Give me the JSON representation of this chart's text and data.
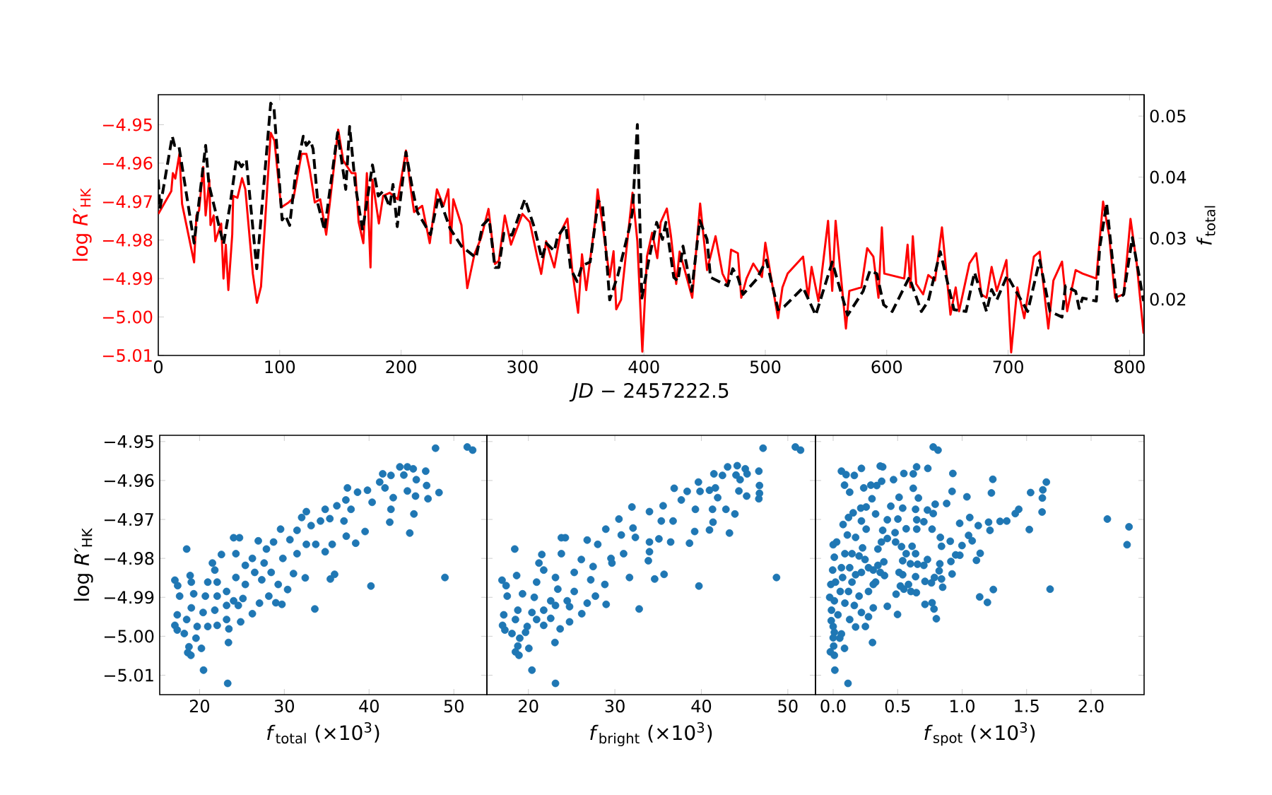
{
  "chart_data": [
    {
      "type": "line",
      "xlabel": "*JD* − 2457222.5",
      "ylabel": "log *R′*$_{HK}$",
      "y2label": "*f*$_{total}$",
      "xlim": [
        0,
        812
      ],
      "xticks": [
        0,
        100,
        200,
        300,
        400,
        500,
        600,
        700,
        800
      ],
      "ylim": [
        -5.01,
        -4.9422
      ],
      "yticks": [
        {
          "value": -5.01,
          "label": "−5.01"
        },
        {
          "value": -5.0,
          "label": "−5.00"
        },
        {
          "value": -4.99,
          "label": "−4.99"
        },
        {
          "value": -4.98,
          "label": "−4.98"
        },
        {
          "value": -4.97,
          "label": "−4.97"
        },
        {
          "value": -4.96,
          "label": "−4.96"
        },
        {
          "value": -4.95,
          "label": "−4.95"
        }
      ],
      "y2lim": [
        0.0108,
        0.0535
      ],
      "y2ticks": [
        0.02,
        0.03,
        0.04,
        0.05
      ],
      "series": [
        {
          "color": "#ff0000",
          "line_style": "solid",
          "x": [
            0,
            10.7,
            12,
            14,
            17.4,
            19.6,
            29.5,
            31.4,
            33.6,
            37,
            39,
            42,
            43,
            45.6,
            47,
            51.8,
            53.7,
            55.6,
            57.7,
            60.9,
            61.7,
            65.2,
            69,
            71.7,
            77.9,
            81.3,
            84.6,
            92.6,
            95.7,
            101.2,
            107.4,
            111.4,
            118,
            122,
            124.8,
            128.9,
            133.4,
            138.3,
            148.2,
            152.3,
            159.2,
            162.4,
            165,
            168.9,
            171.8,
            174.8,
            176.4,
            181.7,
            185.2,
            190.6,
            197.3,
            204,
            208,
            210.7,
            217.4,
            223.6,
            229.5,
            234.9,
            238.9,
            240.8,
            243,
            249.7,
            254.5,
            260.4,
            265.8,
            272,
            277.3,
            280.5,
            285.4,
            290.5,
            299.9,
            306,
            312.2,
            315.4,
            319.5,
            326.2,
            331.6,
            337,
            341,
            345.8,
            349,
            352.5,
            359.7,
            361.9,
            371.8,
            375,
            377.2,
            381.2,
            390.6,
            394.6,
            398.7,
            402.5,
            406.8,
            411,
            413.8,
            418.9,
            422.3,
            426.6,
            429.4,
            433.6,
            439.8,
            446.3,
            452,
            459,
            464.7,
            468.9,
            471.8,
            477.4,
            480.2,
            484.5,
            490.1,
            497.2,
            500,
            505.6,
            510.5,
            514.1,
            518.4,
            531.1,
            535.3,
            538.1,
            543.8,
            551.7,
            555.1,
            557.9,
            566.4,
            569.2,
            579.1,
            583.9,
            589,
            593.2,
            596,
            598,
            614.4,
            617.2,
            619.5,
            621.5,
            624.3,
            630,
            634.2,
            639.8,
            645.5,
            652.5,
            656.8,
            659.6,
            668.1,
            673.7,
            678,
            682.2,
            686.4,
            690.7,
            698.6,
            702.5,
            707.6,
            713.3,
            721.2,
            726,
            733.1,
            737.3,
            744.4,
            748.6,
            755.6,
            761.3,
            772.6,
            778.2,
            783.3,
            788.1,
            795.2,
            800.8,
            805.9,
            811.6
          ],
          "values": [
            -4.9732,
            -4.9673,
            -4.9626,
            -4.964,
            -4.9576,
            -4.9706,
            -4.9858,
            -4.9736,
            -4.9723,
            -4.961,
            -4.9736,
            -4.9643,
            -4.9761,
            -4.9736,
            -4.9803,
            -4.9757,
            -4.99,
            -4.9812,
            -4.993,
            -4.9786,
            -4.9685,
            -4.969,
            -4.9639,
            -4.9668,
            -4.9888,
            -4.9963,
            -4.9921,
            -4.9521,
            -4.9542,
            -4.9715,
            -4.9702,
            -4.969,
            -4.9576,
            -4.9576,
            -4.9618,
            -4.9702,
            -4.9694,
            -4.9786,
            -4.9513,
            -4.9593,
            -4.9626,
            -4.9626,
            -4.9753,
            -4.9808,
            -4.9626,
            -4.9871,
            -4.9643,
            -4.9757,
            -4.9685,
            -4.9677,
            -4.9694,
            -4.9567,
            -4.9668,
            -4.9727,
            -4.9711,
            -4.9808,
            -4.9668,
            -4.9711,
            -4.9668,
            -4.9808,
            -4.9694,
            -4.9761,
            -4.9925,
            -4.9837,
            -4.9795,
            -4.9719,
            -4.9862,
            -4.9854,
            -4.9736,
            -4.9812,
            -4.9732,
            -4.9753,
            -4.9845,
            -4.9888,
            -4.9803,
            -4.9871,
            -4.9778,
            -4.9744,
            -4.9879,
            -4.9989,
            -4.9837,
            -4.993,
            -4.9753,
            -4.9668,
            -4.9896,
            -4.9829,
            -4.998,
            -4.9955,
            -4.9677,
            -4.9803,
            -5.009,
            -4.9843,
            -4.9781,
            -4.9847,
            -4.9754,
            -4.9718,
            -4.979,
            -4.9914,
            -4.983,
            -4.9878,
            -4.995,
            -4.9705,
            -4.9878,
            -4.979,
            -4.9887,
            -4.9914,
            -4.9825,
            -4.9834,
            -4.995,
            -4.99,
            -4.9861,
            -4.9896,
            -4.9807,
            -4.9914,
            -5.0003,
            -4.9923,
            -4.9887,
            -4.9843,
            -4.995,
            -4.987,
            -4.9959,
            -4.975,
            -4.9932,
            -4.975,
            -5.003,
            -4.9932,
            -4.9923,
            -4.9821,
            -4.9843,
            -4.995,
            -4.9767,
            -4.9887,
            -4.99,
            -4.9812,
            -4.9923,
            -4.979,
            -4.9914,
            -4.9941,
            -4.9891,
            -4.9905,
            -4.9767,
            -4.9994,
            -4.9923,
            -4.9985,
            -4.9861,
            -4.9834,
            -4.9941,
            -4.995,
            -4.987,
            -4.9932,
            -4.9852,
            -5.0092,
            -4.9923,
            -5.0003,
            -4.9843,
            -4.983,
            -5.003,
            -4.9905,
            -4.9856,
            -4.9985,
            -4.9878,
            -4.9887,
            -4.99,
            -4.97,
            -4.979,
            -4.995,
            -4.9941,
            -4.9745,
            -4.9861,
            -5.0043
          ]
        },
        {
          "color": "#000000",
          "line_style": "dashed",
          "axis": "y2",
          "x": [
            0,
            1.3,
            11.5,
            13.4,
            16.9,
            29.5,
            39,
            41.7,
            53.7,
            59,
            64.4,
            68.5,
            72.5,
            81.1,
            92.6,
            95.3,
            102,
            104.7,
            108.2,
            112.8,
            119.4,
            122,
            125.4,
            127.5,
            131.5,
            136.9,
            147.7,
            154.4,
            157.6,
            162.4,
            168.3,
            176.4,
            181.2,
            185.2,
            190.6,
            193.3,
            196.8,
            204,
            209.4,
            213.4,
            224.2,
            230.9,
            240.3,
            249.7,
            261.7,
            267.1,
            272.5,
            277.3,
            280.5,
            284.6,
            291.3,
            302,
            310,
            316,
            319.5,
            326.2,
            328.9,
            335.6,
            339.6,
            345,
            349,
            355.7,
            362.4,
            365.9,
            371.8,
            378.5,
            387.9,
            390.6,
            394.6,
            398.3,
            404,
            410.5,
            415.3,
            418.1,
            424.6,
            428,
            432.2,
            439.3,
            446,
            452,
            454.8,
            469,
            473.2,
            477.4,
            481.6,
            492.9,
            500.8,
            510.5,
            515.5,
            531.1,
            541.5,
            555.1,
            567.8,
            580.5,
            586.2,
            591.8,
            597.5,
            604.5,
            618.6,
            628.5,
            634.2,
            644.1,
            655.4,
            665.3,
            672.3,
            682.2,
            686.4,
            690.7,
            699.2,
            704.8,
            716.1,
            726,
            734.5,
            744.4,
            747.2,
            755.6,
            758.5,
            761.3,
            772.6,
            775.4,
            781.1,
            789.5,
            795.2,
            802.3,
            811.6
          ],
          "values": [
            0.0396,
            0.0348,
            0.0467,
            0.0452,
            0.0452,
            0.0292,
            0.0452,
            0.0388,
            0.029,
            0.0353,
            0.043,
            0.0417,
            0.0428,
            0.025,
            0.0521,
            0.0513,
            0.033,
            0.0337,
            0.0321,
            0.0401,
            0.0467,
            0.0452,
            0.046,
            0.0446,
            0.0356,
            0.0313,
            0.0473,
            0.038,
            0.0483,
            0.0385,
            0.0313,
            0.042,
            0.0369,
            0.0377,
            0.0351,
            0.0388,
            0.0319,
            0.0441,
            0.038,
            0.0343,
            0.0306,
            0.0369,
            0.0316,
            0.0287,
            0.0268,
            0.0321,
            0.0332,
            0.0252,
            0.0252,
            0.0308,
            0.0305,
            0.0364,
            0.0316,
            0.0266,
            0.0292,
            0.0279,
            0.0303,
            0.0321,
            0.025,
            0.0229,
            0.0255,
            0.0261,
            0.0361,
            0.0353,
            0.0199,
            0.0239,
            0.0316,
            0.0343,
            0.0486,
            0.0202,
            0.0264,
            0.0326,
            0.0298,
            0.0326,
            0.0236,
            0.023,
            0.0287,
            0.0213,
            0.0329,
            0.0298,
            0.0236,
            0.0222,
            0.025,
            0.0236,
            0.0208,
            0.0233,
            0.0264,
            0.0183,
            0.0188,
            0.0219,
            0.0174,
            0.0261,
            0.0174,
            0.0213,
            0.0247,
            0.0242,
            0.0191,
            0.018,
            0.0236,
            0.018,
            0.0197,
            0.0278,
            0.0183,
            0.018,
            0.0244,
            0.018,
            0.0216,
            0.0199,
            0.0239,
            0.0219,
            0.018,
            0.0264,
            0.018,
            0.0171,
            0.0222,
            0.0213,
            0.0185,
            0.0202,
            0.0197,
            0.0284,
            0.0357,
            0.0197,
            0.0208,
            0.0301,
            0.0197
          ]
        }
      ]
    },
    {
      "type": "scatter",
      "xlabel": "*f*$_{total}$ (×10$^{3}$)",
      "ylabel": "log *R′*$_{HK}$",
      "color": "#1f77b4",
      "marker": "circle",
      "xlim": [
        15.3,
        53.9
      ],
      "xticks": [
        20,
        30,
        40,
        50
      ],
      "ylim": [
        -5.015,
        -4.9484
      ],
      "yticks": [
        {
          "value": -5.01,
          "label": "−5.01"
        },
        {
          "value": -5.0,
          "label": "−5.00"
        },
        {
          "value": -4.99,
          "label": "−4.99"
        },
        {
          "value": -4.98,
          "label": "−4.98"
        },
        {
          "value": -4.97,
          "label": "−4.97"
        },
        {
          "value": -4.96,
          "label": "−4.96"
        },
        {
          "value": -4.95,
          "label": "−4.95"
        }
      ],
      "x": [
        47.84,
        51.58,
        52.22,
        43.63,
        44.52,
        45.21,
        46.68,
        41.61,
        42.58,
        44.1,
        45.57,
        46.79,
        48.25,
        46.95,
        44.52,
        45.48,
        41.25,
        39.81,
        41.88,
        42.85,
        40.36,
        42.58,
        45.29,
        42.44,
        44.8,
        39.53,
        37.45,
        38.64,
        37.26,
        36.2,
        37.87,
        34.82,
        32.6,
        34.27,
        35.37,
        37.04,
        32.05,
        33.16,
        31.5,
        29.56,
        30.66,
        32.6,
        33.71,
        35.65,
        37.31,
        38.42,
        34.82,
        28.73,
        26.93,
        24.02,
        24.71,
        18.48,
        27.89,
        29.83,
        31.5,
        27.62,
        25.4,
        26.23,
        22.58,
        24.29,
        21.52,
        21.8,
        26.51,
        28.45,
        31.08,
        24.29,
        22.08,
        18.89,
        17.09,
        17.42,
        19.03,
        20.97,
        23.19,
        25.4,
        27.34,
        29.28,
        30.39,
        32.47,
        35.43,
        35.93,
        40.22,
        48.95,
        17.65,
        19.31,
        20.69,
        22.08,
        24.02,
        25.12,
        27.07,
        28.17,
        29.0,
        29.72,
        33.6,
        17.37,
        19.03,
        20.42,
        21.8,
        23.19,
        24.57,
        26.23,
        17.09,
        18.48,
        19.72,
        20.97,
        22.08,
        23.19,
        24.85,
        17.37,
        18.2,
        19.58,
        23.46,
        18.75,
        18.61,
        18.98,
        20.22,
        23.41,
        20.47,
        23.32
      ],
      "values": [
        -4.9517,
        -4.9514,
        -4.9522,
        -4.9565,
        -4.9565,
        -4.957,
        -4.9576,
        -4.9583,
        -4.9587,
        -4.9586,
        -4.9598,
        -4.9613,
        -4.9631,
        -4.9647,
        -4.9627,
        -4.964,
        -4.9604,
        -4.9625,
        -4.9619,
        -4.9644,
        -4.9656,
        -4.9674,
        -4.9686,
        -4.9707,
        -4.9735,
        -4.9731,
        -4.9619,
        -4.963,
        -4.965,
        -4.9665,
        -4.9674,
        -4.9674,
        -4.968,
        -4.9704,
        -4.9698,
        -4.9704,
        -4.9695,
        -4.9716,
        -4.9728,
        -4.9725,
        -4.9752,
        -4.9764,
        -4.9764,
        -4.9764,
        -4.9743,
        -4.9761,
        -4.9783,
        -4.9758,
        -4.9755,
        -4.9747,
        -4.9747,
        -4.9776,
        -4.9776,
        -4.98,
        -4.9788,
        -4.9812,
        -4.9818,
        -4.98,
        -4.979,
        -4.9788,
        -4.9812,
        -4.983,
        -4.9836,
        -4.9836,
        -4.9839,
        -4.9849,
        -4.9861,
        -4.9844,
        -4.9856,
        -4.987,
        -4.9861,
        -4.9861,
        -4.9885,
        -4.9867,
        -4.9855,
        -4.9867,
        -4.988,
        -4.985,
        -4.9853,
        -4.9841,
        -4.9871,
        -4.9849,
        -4.9897,
        -4.9891,
        -4.9897,
        -4.9897,
        -4.9909,
        -4.9903,
        -4.9915,
        -4.9897,
        -4.9914,
        -4.9918,
        -4.993,
        -4.9945,
        -4.9927,
        -4.9939,
        -4.9933,
        -4.9921,
        -4.9921,
        -4.9942,
        -4.9972,
        -4.9957,
        -4.9975,
        -4.9975,
        -4.9972,
        -4.9957,
        -4.9963,
        -4.9984,
        -4.9993,
        -5.0005,
        -4.9981,
        -5.0027,
        -5.0042,
        -5.0049,
        -5.0031,
        -5.0016,
        -5.0087,
        -5.0121
      ]
    },
    {
      "type": "scatter",
      "xlabel": "*f*$_{bright}$ (×10$^{3}$)",
      "color": "#1f77b4",
      "marker": "circle",
      "tick_labels": "x",
      "xlim": [
        15.2,
        53.2
      ],
      "xticks": [
        20,
        30,
        40,
        50
      ],
      "ylim": [
        -5.015,
        -4.9484
      ],
      "yticks": [
        -5.01,
        -5.0,
        -4.99,
        -4.98,
        -4.97,
        -4.96,
        -4.95
      ],
      "x": [
        47.14,
        50.87,
        51.47,
        43.04,
        44.15,
        45.08,
        46.65,
        41.45,
        42.44,
        44.01,
        44.48,
        45.29,
        46.72,
        46.72,
        46.65,
        45.24,
        44.34,
        39.66,
        39.85,
        40.94,
        41.62,
        41.89,
        36.86,
        38.36,
        37.68,
        39.31,
        41.29,
        42.84,
        43.88,
        41.35,
        43.25,
        40.94,
        39.23,
        35.58,
        34.0,
        35.37,
        36.73,
        31.97,
        30.47,
        32.1,
        28.95,
        30.74,
        32.37,
        34.0,
        35.09,
        36.45,
        38.63,
        34.0,
        26.8,
        23.81,
        24.27,
        18.42,
        28.02,
        29.55,
        31.01,
        33.87,
        21.55,
        23.81,
        21.22,
        21.77,
        26.12,
        27.48,
        29.66,
        31.69,
        34.6,
        35.69,
        39.72,
        48.69,
        16.95,
        18.64,
        17.42,
        20.95,
        23.13,
        25.3,
        27.21,
        28.84,
        23.4,
        25.3,
        17.55,
        19.32,
        20.68,
        22.58,
        24.49,
        26.8,
        27.75,
        28.99,
        32.81,
        17.15,
        18.78,
        20.41,
        21.77,
        23.13,
        24.76,
        26.17,
        17.01,
        18.5,
        19.86,
        20.95,
        21.77,
        22.58,
        24.76,
        17.28,
        18.1,
        19.0,
        23.67,
        19.67,
        18.78,
        18.5,
        18.91,
        20.05,
        23.07,
        20.41,
        23.13
      ],
      "values": [
        -4.9517,
        -4.9514,
        -4.9522,
        -4.9565,
        -4.9562,
        -4.957,
        -4.9576,
        -4.9583,
        -4.9587,
        -4.9586,
        -4.9598,
        -4.9583,
        -4.9613,
        -4.9633,
        -4.9647,
        -4.964,
        -4.9627,
        -4.9604,
        -4.9628,
        -4.9625,
        -4.9619,
        -4.9644,
        -4.962,
        -4.9628,
        -4.965,
        -4.9674,
        -4.9674,
        -4.9674,
        -4.9686,
        -4.9707,
        -4.9735,
        -4.9727,
        -4.9731,
        -4.9665,
        -4.968,
        -4.9704,
        -4.9704,
        -4.9668,
        -4.9699,
        -4.9722,
        -4.9725,
        -4.974,
        -4.9746,
        -4.9758,
        -4.975,
        -4.9758,
        -4.9761,
        -4.9783,
        -4.9753,
        -4.9747,
        -4.9747,
        -4.9776,
        -4.9764,
        -4.98,
        -4.9788,
        -4.9806,
        -4.979,
        -4.9788,
        -4.9812,
        -4.983,
        -4.9803,
        -4.9821,
        -4.9812,
        -4.9849,
        -4.9853,
        -4.9841,
        -4.9871,
        -4.9849,
        -4.9856,
        -4.9844,
        -4.987,
        -4.9861,
        -4.9849,
        -4.9836,
        -4.9855,
        -4.9867,
        -4.9879,
        -4.9885,
        -4.9897,
        -4.9891,
        -4.99,
        -4.9909,
        -4.9909,
        -4.9915,
        -4.9897,
        -4.9918,
        -4.993,
        -4.9945,
        -4.9933,
        -4.9939,
        -4.9933,
        -4.9921,
        -4.9924,
        -4.9942,
        -4.9972,
        -4.9957,
        -4.9975,
        -4.9957,
        -4.9972,
        -4.9954,
        -4.9963,
        -4.9984,
        -4.9993,
        -5.0005,
        -4.9981,
        -4.999,
        -5.0025,
        -5.004,
        -5.0049,
        -5.0031,
        -5.0016,
        -5.0087,
        -5.0121
      ]
    },
    {
      "type": "scatter",
      "xlabel": "*f*$_{spot}$ (×10$^{3}$)",
      "color": "#1f77b4",
      "marker": "circle",
      "tick_labels": "x",
      "xlim": [
        -0.137,
        2.411
      ],
      "xticks": [
        {
          "value": 0,
          "label": "0.0"
        },
        0.5,
        {
          "value": 1,
          "label": "1.0"
        },
        1.5,
        {
          "value": 2,
          "label": "2.0"
        }
      ],
      "ylim": [
        -5.015,
        -4.9484
      ],
      "yticks": [
        -5.01,
        -5.0,
        -4.99,
        -4.98,
        -4.97,
        -4.96,
        -4.95
      ],
      "x": [
        0.776,
        0.813,
        0.064,
        0.1,
        0.164,
        0.219,
        0.365,
        0.384,
        0.548,
        0.621,
        0.647,
        0.734,
        0.928,
        1.238,
        1.653,
        1.626,
        1.622,
        1.531,
        1.227,
        0.922,
        1.037,
        1.62,
        1.439,
        1.412,
        2.126,
        2.294,
        2.279,
        1.521,
        1.346,
        1.294,
        1.205,
        1.216,
        1.125,
        1.059,
        0.981,
        0.88,
        0.791,
        0.661,
        0.621,
        0.468,
        0.376,
        0.338,
        0.292,
        0.237,
        0.088,
        0.128,
        0.511,
        0.539,
        0.639,
        0.776,
        0.731,
        0.648,
        0.703,
        0.648,
        0.566,
        0.502,
        0.447,
        0.301,
        0.256,
        0.329,
        0.214,
        0.155,
        0.119,
        0.077,
        0.219,
        0.256,
        0.384,
        0.42,
        0.48,
        0.767,
        0.831,
        0.908,
        0.84,
        0.999,
        1.05,
        1.078,
        1.14,
        1.111,
        0.95,
        0.982,
        0.913,
        0.922,
        0.827,
        0.822,
        0.84,
        0.849,
        0.785,
        0.762,
        0.712,
        0.639,
        0.645,
        0.603,
        0.584,
        0.548,
        0.521,
        0.488,
        0.539,
        0.511,
        0.731,
        0.703,
        0.654,
        0.599,
        0.539,
        0.639,
        0.566,
        0.612,
        0.53,
        0.484,
        0.42,
        0.374,
        0.347,
        0.393,
        0.365,
        0.311,
        0.274,
        0.329,
        0.398,
        0.347,
        0.311,
        0.228,
        0.174,
        0.11,
        0.027,
        0,
        0.009,
        0.091,
        0.146,
        0.201,
        0.247,
        0.274,
        0.219,
        0.174,
        0.128,
        0.064,
        -0.004,
        -0.018,
        0.018,
        0.073,
        0.146,
        0.201,
        0.119,
        0.055,
        -0.027,
        0.009,
        0.091,
        0.164,
        0.219,
        0.311,
        0.42,
        0.499,
        0.274,
        0.712,
        0.767,
        0.782,
        0.8,
        1.136,
        1.196,
        1.242,
        1.682,
        -0.013,
        0.037,
        0.128,
        0.174,
        0.25,
        -0.015,
        0,
        0.009,
        0,
        0.051,
        0.064,
        0.004,
        -0.022,
        0.009,
        0.088,
        0.305,
        0.013,
        0.115
      ],
      "values": [
        -4.9514,
        -4.9522,
        -4.9576,
        -4.9585,
        -4.9587,
        -4.9569,
        -4.9563,
        -4.9565,
        -4.9582,
        -4.9583,
        -4.9565,
        -4.9569,
        -4.9582,
        -4.9597,
        -4.9604,
        -4.9624,
        -4.9645,
        -4.9631,
        -4.9632,
        -4.9628,
        -4.9642,
        -4.9681,
        -4.9674,
        -4.9685,
        -4.9699,
        -4.9719,
        -4.9765,
        -4.9726,
        -4.9704,
        -4.9705,
        -4.9707,
        -4.9728,
        -4.9716,
        -4.9695,
        -4.971,
        -4.9659,
        -4.9661,
        -4.9645,
        -4.962,
        -4.9598,
        -4.9602,
        -4.9613,
        -4.9612,
        -4.9619,
        -4.9612,
        -4.963,
        -4.9643,
        -4.9671,
        -4.9674,
        -4.9685,
        -4.9676,
        -4.9701,
        -4.9706,
        -4.9725,
        -4.9724,
        -4.9699,
        -4.9666,
        -4.9647,
        -4.9668,
        -4.9686,
        -4.9671,
        -4.9683,
        -4.9695,
        -4.9713,
        -4.9704,
        -4.9725,
        -4.9728,
        -4.9701,
        -4.9734,
        -4.9725,
        -4.9746,
        -4.9756,
        -4.9769,
        -4.9767,
        -4.9741,
        -4.9755,
        -4.9787,
        -4.9805,
        -4.9791,
        -4.9792,
        -4.9808,
        -4.984,
        -4.9814,
        -4.9832,
        -4.9853,
        -4.9874,
        -4.9849,
        -4.9863,
        -4.9859,
        -4.9847,
        -4.9888,
        -4.9885,
        -4.9867,
        -4.9879,
        -4.9871,
        -4.9892,
        -4.9842,
        -4.9836,
        -4.9803,
        -4.9818,
        -4.9815,
        -4.9814,
        -4.9806,
        -4.9788,
        -4.9788,
        -4.9769,
        -4.977,
        -4.9758,
        -4.9749,
        -4.9758,
        -4.9776,
        -4.9809,
        -4.9836,
        -4.9867,
        -4.9885,
        -4.9861,
        -4.9844,
        -4.9818,
        -4.983,
        -4.9773,
        -4.9746,
        -4.974,
        -4.9758,
        -4.9765,
        -4.9797,
        -4.9788,
        -4.9788,
        -4.9794,
        -4.9803,
        -4.9824,
        -4.9836,
        -4.9842,
        -4.9824,
        -4.9824,
        -4.983,
        -4.9867,
        -4.9861,
        -4.9849,
        -4.9861,
        -4.9897,
        -4.9885,
        -4.9885,
        -4.99,
        -4.9909,
        -4.9915,
        -4.9921,
        -4.9939,
        -4.9927,
        -4.9923,
        -4.9944,
        -4.995,
        -4.9918,
        -4.9914,
        -4.993,
        -4.9955,
        -4.9899,
        -4.9913,
        -4.988,
        -4.9879,
        -4.9933,
        -4.9945,
        -4.9957,
        -4.9976,
        -4.9975,
        -4.996,
        -4.9975,
        -4.999,
        -5.0004,
        -5.0005,
        -4.9994,
        -5.0025,
        -5.004,
        -5.0049,
        -5.0031,
        -5.0016,
        -5.0087,
        -5.0121
      ]
    }
  ]
}
